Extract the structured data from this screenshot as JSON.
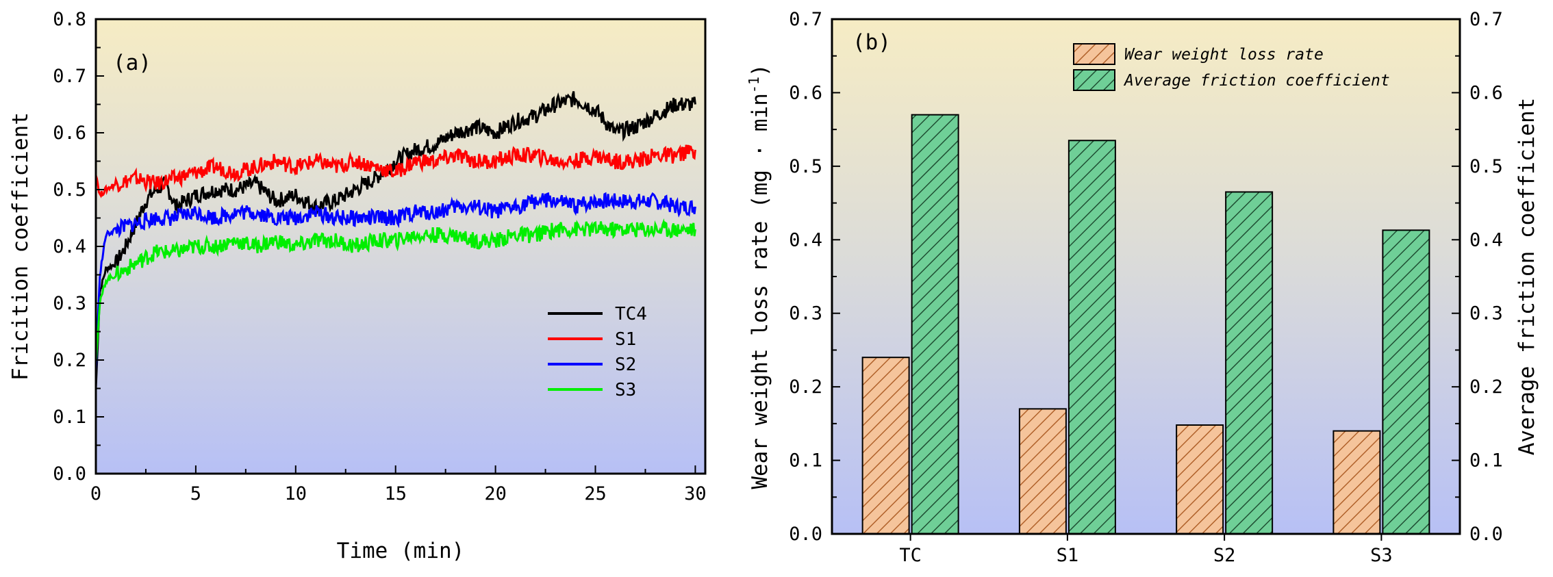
{
  "chart_data": [
    {
      "panel": "(a)",
      "type": "line",
      "xlabel": "Time (min)",
      "ylabel": "Fricition coefficient",
      "xlim": [
        0,
        30.5
      ],
      "ylim": [
        0.0,
        0.8
      ],
      "xticks": [
        "0",
        "5",
        "10",
        "15",
        "20",
        "25",
        "30"
      ],
      "yticks": [
        "0.0",
        "0.1",
        "0.2",
        "0.3",
        "0.4",
        "0.5",
        "0.6",
        "0.7",
        "0.8"
      ],
      "legend_position": "center-right",
      "series": [
        {
          "name": "TC4",
          "color": "#000000",
          "x": [
            0,
            0.2,
            0.5,
            1,
            1.5,
            2,
            2.5,
            3,
            3.5,
            4,
            5,
            6,
            7,
            8,
            9,
            10,
            11,
            12,
            13,
            14,
            15,
            16,
            17,
            18,
            19,
            20,
            21,
            22,
            23,
            24,
            25,
            26,
            27,
            28,
            29,
            30
          ],
          "y": [
            0.15,
            0.32,
            0.36,
            0.37,
            0.4,
            0.44,
            0.48,
            0.5,
            0.51,
            0.47,
            0.49,
            0.5,
            0.5,
            0.51,
            0.48,
            0.49,
            0.47,
            0.48,
            0.5,
            0.52,
            0.55,
            0.57,
            0.58,
            0.6,
            0.61,
            0.6,
            0.62,
            0.63,
            0.65,
            0.66,
            0.64,
            0.6,
            0.61,
            0.63,
            0.65,
            0.65
          ]
        },
        {
          "name": "S1",
          "color": "#ff0000",
          "x": [
            0,
            0.2,
            0.5,
            1,
            2,
            3,
            4,
            5,
            6,
            7,
            8,
            9,
            10,
            11,
            12,
            13,
            14,
            15,
            16,
            17,
            18,
            19,
            20,
            21,
            22,
            23,
            24,
            25,
            26,
            27,
            28,
            29,
            30
          ],
          "y": [
            0.53,
            0.49,
            0.5,
            0.51,
            0.52,
            0.51,
            0.52,
            0.53,
            0.54,
            0.53,
            0.54,
            0.55,
            0.54,
            0.55,
            0.54,
            0.55,
            0.54,
            0.53,
            0.55,
            0.55,
            0.56,
            0.55,
            0.55,
            0.56,
            0.56,
            0.55,
            0.55,
            0.56,
            0.55,
            0.55,
            0.56,
            0.56,
            0.57
          ]
        },
        {
          "name": "S2",
          "color": "#0000ff",
          "x": [
            0,
            0.2,
            0.5,
            1,
            2,
            3,
            4,
            5,
            6,
            7,
            8,
            9,
            10,
            11,
            12,
            13,
            14,
            15,
            16,
            17,
            18,
            19,
            20,
            21,
            22,
            23,
            24,
            25,
            26,
            27,
            28,
            29,
            30
          ],
          "y": [
            0.18,
            0.35,
            0.42,
            0.43,
            0.44,
            0.45,
            0.45,
            0.46,
            0.45,
            0.46,
            0.46,
            0.45,
            0.45,
            0.46,
            0.45,
            0.45,
            0.45,
            0.45,
            0.46,
            0.46,
            0.47,
            0.47,
            0.46,
            0.47,
            0.48,
            0.48,
            0.47,
            0.48,
            0.48,
            0.48,
            0.48,
            0.47,
            0.47
          ]
        },
        {
          "name": "S3",
          "color": "#00ee00",
          "x": [
            0,
            0.2,
            0.5,
            1,
            2,
            3,
            4,
            5,
            6,
            7,
            8,
            9,
            10,
            11,
            12,
            13,
            14,
            15,
            16,
            17,
            18,
            19,
            20,
            21,
            22,
            23,
            24,
            25,
            26,
            27,
            28,
            29,
            30
          ],
          "y": [
            0.2,
            0.3,
            0.34,
            0.35,
            0.37,
            0.39,
            0.39,
            0.4,
            0.4,
            0.41,
            0.4,
            0.41,
            0.4,
            0.41,
            0.41,
            0.4,
            0.41,
            0.41,
            0.42,
            0.42,
            0.42,
            0.41,
            0.41,
            0.42,
            0.42,
            0.43,
            0.43,
            0.43,
            0.43,
            0.43,
            0.43,
            0.43,
            0.43
          ]
        }
      ]
    },
    {
      "panel": "(b)",
      "type": "bar",
      "categories": [
        "TC",
        "S1",
        "S2",
        "S3"
      ],
      "ylabel": "Wear weight loss rate (mg·min⁻¹)",
      "ylabel_parts": {
        "main": "Wear weight loss rate (mg · min",
        "sup": "-1",
        "tail": ")"
      },
      "y2label": "Average friction coefficient",
      "ylim": [
        0.0,
        0.7
      ],
      "y2lim": [
        0.0,
        0.7
      ],
      "yticks": [
        "0.0",
        "0.1",
        "0.2",
        "0.3",
        "0.4",
        "0.5",
        "0.6",
        "0.7"
      ],
      "legend_position": "top-right",
      "series": [
        {
          "name": "Wear weight loss rate",
          "color": "#f5c49b",
          "hatch": "#c46a2a",
          "axis": "left",
          "values": [
            0.24,
            0.17,
            0.148,
            0.14
          ]
        },
        {
          "name": "Average friction coefficient",
          "color": "#6fcf97",
          "hatch": "#1f5f3a",
          "axis": "right",
          "values": [
            0.57,
            0.535,
            0.465,
            0.413
          ]
        }
      ]
    }
  ]
}
